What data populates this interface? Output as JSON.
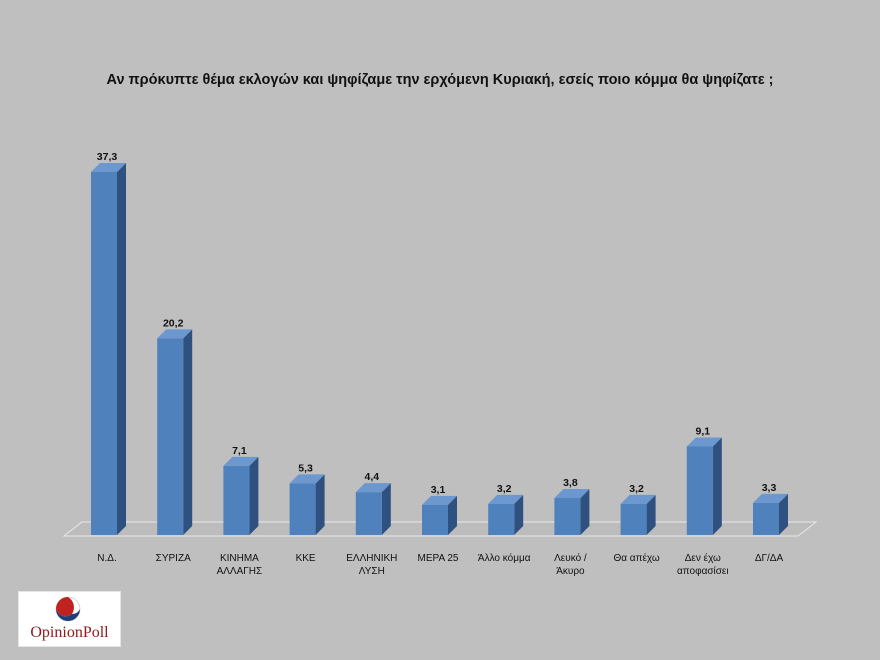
{
  "chart_data": {
    "type": "bar",
    "title": "Αν πρόκυπτε θέμα εκλογών και ψηφίζαμε την ερχόμενη Κυριακή, εσείς ποιο κόμμα θα ψηφίζατε ;",
    "categories": [
      [
        "Ν.Δ."
      ],
      [
        "ΣΥΡΙΖΑ"
      ],
      [
        "ΚΙΝΗΜΑ",
        "ΑΛΛΑΓΗΣ"
      ],
      [
        "ΚΚΕ"
      ],
      [
        "ΕΛΛΗΝΙΚΗ",
        "ΛΥΣΗ"
      ],
      [
        "ΜΕΡΑ 25"
      ],
      [
        "Άλλο κόμμα"
      ],
      [
        "Λευκό /",
        "Άκυρο"
      ],
      [
        "Θα απέχω"
      ],
      [
        "Δεν έχω",
        "αποφασίσει"
      ],
      [
        "ΔΓ/ΔΑ"
      ]
    ],
    "values": [
      37.3,
      20.2,
      7.1,
      5.3,
      4.4,
      3.1,
      3.2,
      3.8,
      3.2,
      9.1,
      3.3
    ],
    "value_labels": [
      "37,3",
      "20,2",
      "7,1",
      "5,3",
      "4,4",
      "3,1",
      "3,2",
      "3,8",
      "3,2",
      "9,1",
      "3,3"
    ],
    "ylim": [
      0,
      37.3
    ],
    "grid": false,
    "legend": "none",
    "colors": {
      "bar_front": "#4f81bd",
      "bar_side": "#2f5180",
      "bar_top": "#6d98cf",
      "floor": "#bcbcbc",
      "background": "#bfbfbf"
    }
  },
  "logo": {
    "text": "OpinionPoll",
    "colors": {
      "red": "#c0221f",
      "blue": "#1e3f7a"
    }
  }
}
